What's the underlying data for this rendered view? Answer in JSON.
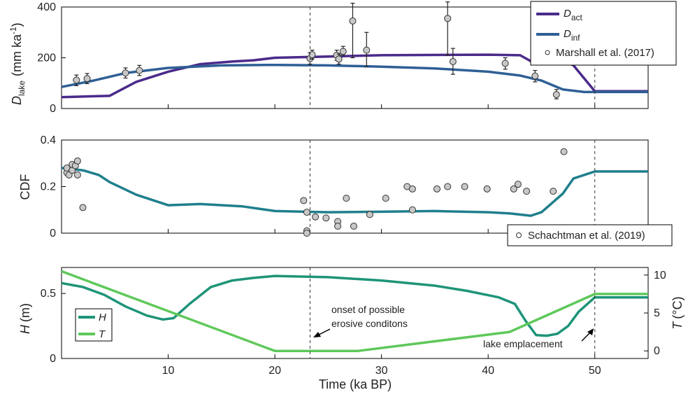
{
  "chart_data": [
    {
      "type": "line",
      "panel": "top",
      "ylabel_main": "D",
      "ylabel_sub": "lake",
      "ylabel_units": "(mm ka",
      "ylabel_exp": "-1",
      "ylabel_close": ")",
      "ylim": [
        0,
        400
      ],
      "yticks": [
        "0",
        "200",
        "400"
      ],
      "series": [
        {
          "name": "D",
          "name_sub": "act",
          "color": "#4b2a8a",
          "x": [
            0,
            4.5,
            7,
            10,
            13,
            16,
            18,
            20,
            25,
            30,
            40,
            43,
            44.5,
            47,
            48,
            50,
            55
          ],
          "y": [
            45,
            50,
            105,
            145,
            175,
            185,
            190,
            200,
            205,
            210,
            212,
            210,
            175,
            190,
            170,
            68,
            68
          ]
        },
        {
          "name": "D",
          "name_sub": "inf",
          "color": "#2e5f95",
          "x": [
            0,
            3,
            6,
            10,
            15,
            20,
            25,
            30,
            35,
            40,
            43,
            45,
            47,
            49,
            55
          ],
          "y": [
            85,
            110,
            140,
            160,
            170,
            172,
            170,
            165,
            158,
            145,
            130,
            110,
            75,
            65,
            65
          ]
        }
      ],
      "points_label": "Marshall et al. (2017)",
      "points": [
        {
          "x": 1.4,
          "y": 112,
          "lo": 90,
          "hi": 132
        },
        {
          "x": 2.4,
          "y": 118,
          "lo": 98,
          "hi": 138
        },
        {
          "x": 6,
          "y": 140,
          "lo": 120,
          "hi": 160
        },
        {
          "x": 7.3,
          "y": 150,
          "lo": 130,
          "hi": 170
        },
        {
          "x": 23.3,
          "y": 197,
          "lo": 175,
          "hi": 220
        },
        {
          "x": 23.5,
          "y": 212,
          "lo": 195,
          "hi": 230
        },
        {
          "x": 25.8,
          "y": 210,
          "lo": 190,
          "hi": 230
        },
        {
          "x": 26,
          "y": 195,
          "lo": 175,
          "hi": 215
        },
        {
          "x": 26.4,
          "y": 225,
          "lo": 210,
          "hi": 245
        },
        {
          "x": 27.3,
          "y": 345,
          "lo": 200,
          "hi": 415
        },
        {
          "x": 28.6,
          "y": 230,
          "lo": 165,
          "hi": 300
        },
        {
          "x": 36.2,
          "y": 355,
          "lo": 210,
          "hi": 420
        },
        {
          "x": 36.7,
          "y": 185,
          "lo": 135,
          "hi": 237
        },
        {
          "x": 41.6,
          "y": 178,
          "lo": 155,
          "hi": 200
        },
        {
          "x": 44.4,
          "y": 128,
          "lo": 105,
          "hi": 150
        },
        {
          "x": 46.4,
          "y": 55,
          "lo": 38,
          "hi": 75
        }
      ]
    },
    {
      "type": "line",
      "panel": "middle",
      "ylabel": "CDF",
      "ylim": [
        0,
        0.4
      ],
      "yticks": [
        "0",
        "0.2",
        "0.4"
      ],
      "series": [
        {
          "color": "#1f7f8c",
          "x": [
            0,
            2,
            3.5,
            4.5,
            7,
            10,
            13,
            17,
            20,
            25,
            30,
            35,
            40,
            42,
            44,
            45,
            47,
            48,
            50,
            55
          ],
          "y": [
            0.28,
            0.27,
            0.25,
            0.22,
            0.165,
            0.12,
            0.125,
            0.115,
            0.095,
            0.09,
            0.092,
            0.095,
            0.09,
            0.085,
            0.075,
            0.09,
            0.17,
            0.235,
            0.265,
            0.265
          ]
        }
      ],
      "points_label": "Schachtman et al. (2019)",
      "points": [
        {
          "x": 0.5,
          "y": 0.26
        },
        {
          "x": 0.5,
          "y": 0.28
        },
        {
          "x": 0.7,
          "y": 0.25
        },
        {
          "x": 1,
          "y": 0.27
        },
        {
          "x": 1,
          "y": 0.295
        },
        {
          "x": 1.3,
          "y": 0.29
        },
        {
          "x": 1.5,
          "y": 0.31
        },
        {
          "x": 1.5,
          "y": 0.25
        },
        {
          "x": 2,
          "y": 0.11
        },
        {
          "x": 22.7,
          "y": 0.14
        },
        {
          "x": 23,
          "y": 0.09
        },
        {
          "x": 23,
          "y": 0.01
        },
        {
          "x": 23,
          "y": 0
        },
        {
          "x": 23.8,
          "y": 0.07
        },
        {
          "x": 24.8,
          "y": 0.065
        },
        {
          "x": 25.9,
          "y": 0.05
        },
        {
          "x": 25.9,
          "y": 0.03
        },
        {
          "x": 26.7,
          "y": 0.15
        },
        {
          "x": 27.4,
          "y": 0.03
        },
        {
          "x": 28.9,
          "y": 0.08
        },
        {
          "x": 30.4,
          "y": 0.15
        },
        {
          "x": 32.4,
          "y": 0.2
        },
        {
          "x": 32.9,
          "y": 0.19
        },
        {
          "x": 32.9,
          "y": 0.1
        },
        {
          "x": 35.2,
          "y": 0.19
        },
        {
          "x": 36.2,
          "y": 0.2
        },
        {
          "x": 37.8,
          "y": 0.2
        },
        {
          "x": 39.9,
          "y": 0.19
        },
        {
          "x": 42.4,
          "y": 0.19
        },
        {
          "x": 42.8,
          "y": 0.21
        },
        {
          "x": 43.6,
          "y": 0.18
        },
        {
          "x": 46.1,
          "y": 0.18
        },
        {
          "x": 47.1,
          "y": 0.35
        }
      ]
    },
    {
      "type": "line",
      "panel": "bottom",
      "ylabel_left_main": "H",
      "ylabel_left_units": "(m)",
      "ylabel_right_main": "T",
      "ylabel_right_units": "(°C)",
      "ylim_left": [
        0,
        0.7
      ],
      "yticks_left": [
        "0",
        "0.5"
      ],
      "ylim_right": [
        -1,
        11
      ],
      "yticks_right": [
        "0",
        "5",
        "10"
      ],
      "xlabel": "Time (ka BP)",
      "xlim": [
        0,
        55
      ],
      "xticks": [
        "10",
        "20",
        "30",
        "40",
        "50"
      ],
      "series": [
        {
          "name": "H",
          "color": "#1e9478",
          "axis": "left",
          "x": [
            0,
            2,
            4,
            6,
            8,
            9.5,
            10.5,
            12,
            14,
            16,
            18,
            20,
            25,
            30,
            35,
            38,
            41,
            42.5,
            43.5,
            44.5,
            45.5,
            46.5,
            47.5,
            48.5,
            50,
            55
          ],
          "y": [
            0.58,
            0.55,
            0.49,
            0.4,
            0.33,
            0.3,
            0.31,
            0.42,
            0.55,
            0.6,
            0.62,
            0.635,
            0.625,
            0.6,
            0.56,
            0.52,
            0.47,
            0.42,
            0.29,
            0.18,
            0.175,
            0.19,
            0.25,
            0.36,
            0.47,
            0.47
          ]
        },
        {
          "name": "T",
          "color": "#5ec85a",
          "axis": "right",
          "x": [
            0,
            20,
            27.8,
            42,
            50,
            55
          ],
          "y": [
            10.5,
            0,
            0,
            2.5,
            7.5,
            7.5
          ]
        }
      ],
      "annotations": [
        {
          "line1": "onset of possible",
          "line2": "erosive conditons"
        },
        {
          "text": "lake emplacement"
        }
      ]
    }
  ]
}
